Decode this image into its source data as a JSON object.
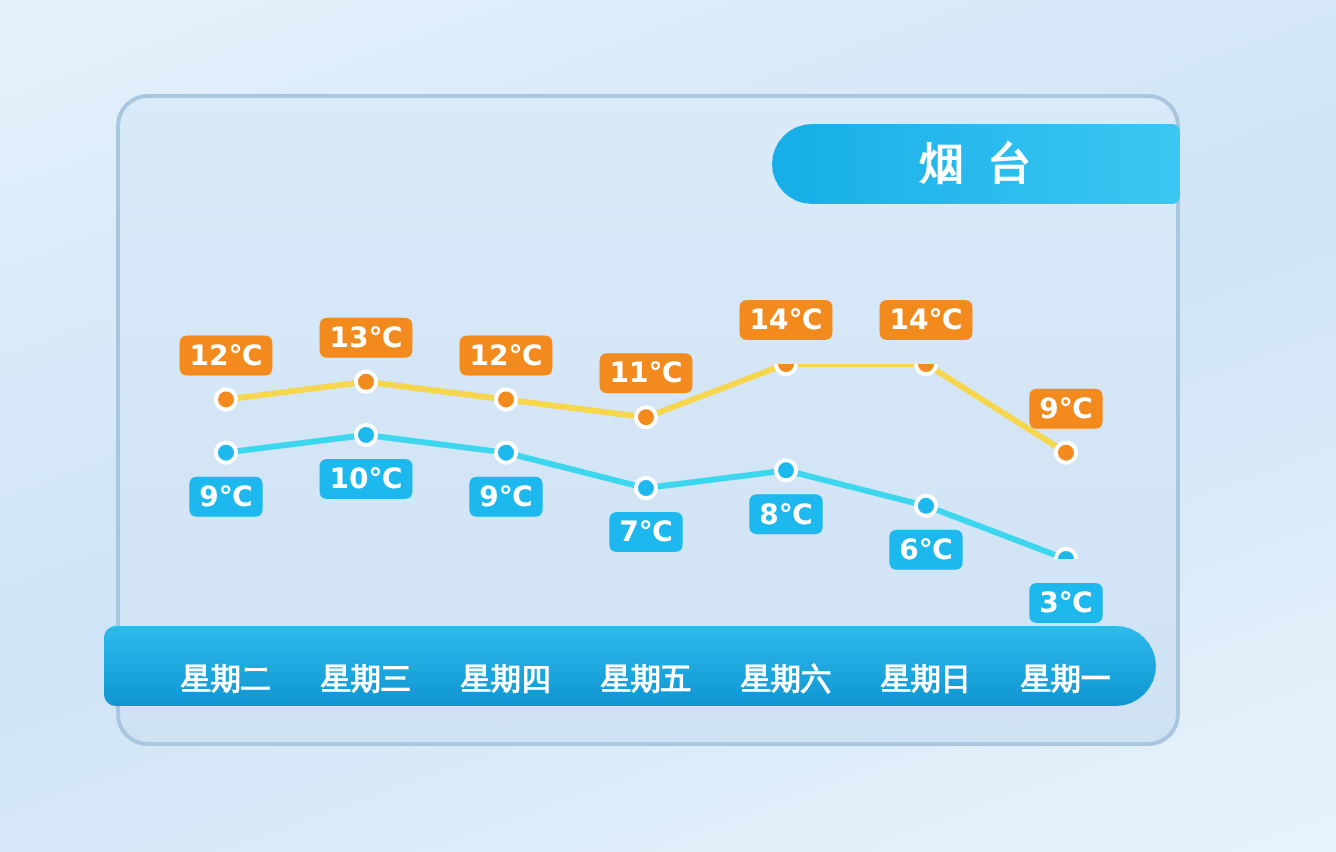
{
  "chart_data": {
    "type": "line",
    "title": "烟台",
    "categories": [
      "星期二",
      "星期三",
      "星期四",
      "星期五",
      "星期六",
      "星期日",
      "星期一"
    ],
    "series": [
      {
        "color": "#f5d64c",
        "colors": [
          "#f28a1e",
          "#f28a1e",
          "#f28a1e",
          "#f28a1e",
          "#f28a1e",
          "#f28a1e",
          "#f28a1e"
        ],
        "values": [
          12,
          13,
          12,
          11,
          14,
          14,
          9
        ],
        "value_labels": [
          "12℃",
          "13℃",
          "12℃",
          "11℃",
          "14℃",
          "14℃",
          "9℃"
        ]
      },
      {
        "color": "#3dd6ef",
        "colors": [
          "#1cb8ee",
          "#1cb8ee",
          "#1cb8ee",
          "#1cb8ee",
          "#1cb8ee",
          "#1cb8ee",
          "#1cb8ee"
        ],
        "values": [
          9,
          10,
          9,
          7,
          8,
          6,
          3
        ],
        "value_labels": [
          "9℃",
          "10℃",
          "9℃",
          "7℃",
          "8℃",
          "6℃",
          "3℃"
        ]
      }
    ],
    "marker": "circle",
    "tick_labels": "x"
  }
}
